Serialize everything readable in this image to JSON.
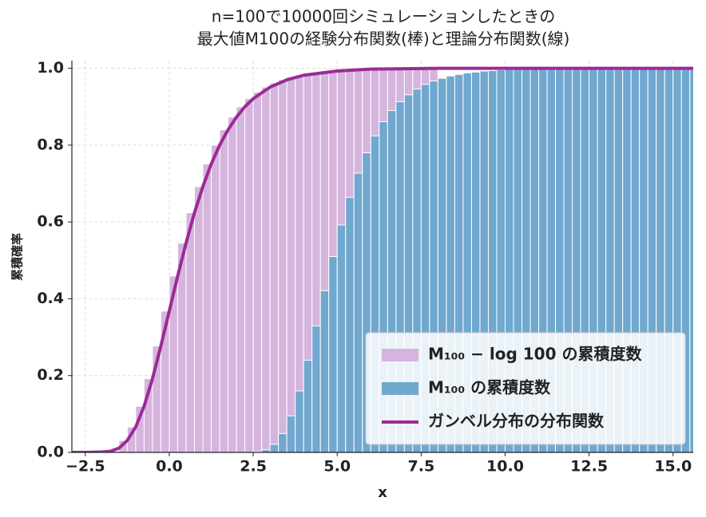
{
  "chart_data": {
    "type": "histogram",
    "title": [
      "n=100で10000回シミュレーションしたときの",
      "最大値M100の経験分布関数(棒)と理論分布関数(線)"
    ],
    "xlabel": "x",
    "ylabel": "累積確率",
    "xlim": [
      -2.9,
      15.6
    ],
    "ylim": [
      0,
      1.02
    ],
    "xticks": [
      {
        "value": -2.5,
        "label": "−2.5"
      },
      {
        "value": 0,
        "label": "0.0"
      },
      {
        "value": 2.5,
        "label": "2.5"
      },
      {
        "value": 5,
        "label": "5.0"
      },
      {
        "value": 7.5,
        "label": "7.5"
      },
      {
        "value": 10,
        "label": "10.0"
      },
      {
        "value": 12.5,
        "label": "12.5"
      },
      {
        "value": 15,
        "label": "15.0"
      }
    ],
    "yticks": [
      {
        "value": 0,
        "label": "0.0"
      },
      0.2,
      0.4,
      0.6,
      0.8,
      {
        "value": 1,
        "label": "1.0"
      }
    ],
    "grid": true,
    "legend": "lower right",
    "series": [
      {
        "name": "M₁₀₀ − log 100 の累積度数",
        "kind": "bars",
        "color": "#d5b5de",
        "bins": [
          -1.5,
          -1.25,
          -1,
          -0.75,
          -0.5,
          -0.25,
          0,
          0.25,
          0.5,
          0.75,
          1,
          1.25,
          1.5,
          1.75,
          2,
          2.25,
          2.5,
          2.75,
          3,
          3.25,
          3.5,
          3.75,
          4,
          4.25,
          4.5,
          4.75,
          5,
          5.25,
          5.5,
          5.75,
          6,
          6.25,
          6.5,
          6.75,
          7,
          7.25,
          7.5,
          7.75,
          8
        ],
        "values": [
          0.031,
          0.066,
          0.12,
          0.192,
          0.277,
          0.368,
          0.459,
          0.545,
          0.624,
          0.692,
          0.751,
          0.8,
          0.84,
          0.873,
          0.9,
          0.921,
          0.938,
          0.951,
          0.962,
          0.97,
          0.977,
          0.982,
          0.986,
          0.989,
          0.991,
          0.993,
          0.995,
          0.996,
          0.997,
          0.998,
          0.998,
          0.999,
          0.999,
          0.999,
          1,
          1,
          1,
          1
        ]
      },
      {
        "name": "M₁₀₀ の累積度数",
        "kind": "bars",
        "color": "#70a8cf",
        "bins": [
          2.5,
          2.75,
          3,
          3.25,
          3.5,
          3.75,
          4,
          4.25,
          4.5,
          4.75,
          5,
          5.25,
          5.5,
          5.75,
          6,
          6.25,
          6.5,
          6.75,
          7,
          7.25,
          7.5,
          7.75,
          8,
          8.25,
          8.5,
          8.75,
          9,
          9.25,
          9.5,
          9.75,
          10,
          10.25,
          10.5,
          10.75,
          11,
          11.25,
          11.5,
          11.75,
          12,
          12.25,
          12.5,
          12.75,
          13,
          13.25,
          13.5,
          13.75,
          14,
          14.25,
          14.5,
          14.75,
          15,
          15.25,
          15.5,
          15.75
        ],
        "values": [
          0.002,
          0.007,
          0.021,
          0.049,
          0.095,
          0.16,
          0.24,
          0.329,
          0.421,
          0.51,
          0.592,
          0.664,
          0.727,
          0.78,
          0.824,
          0.861,
          0.89,
          0.913,
          0.931,
          0.946,
          0.958,
          0.967,
          0.974,
          0.98,
          0.984,
          0.988,
          0.99,
          0.993,
          0.994,
          0.996,
          0.997,
          0.997,
          0.998,
          0.998,
          0.999,
          0.999,
          0.999,
          0.999,
          1,
          1,
          1,
          1,
          1,
          1,
          1,
          1,
          1,
          1,
          1,
          1,
          1,
          1,
          1
        ]
      },
      {
        "name": "ガンベル分布の分布関数",
        "kind": "line",
        "color": "#9c2a96",
        "x": [
          -2.9,
          -2.5,
          -2,
          -1.75,
          -1.5,
          -1.25,
          -1,
          -0.75,
          -0.5,
          -0.25,
          0,
          0.25,
          0.5,
          0.75,
          1,
          1.25,
          1.5,
          1.75,
          2,
          2.25,
          2.5,
          3,
          3.5,
          4,
          5,
          6,
          8,
          10,
          15.6
        ],
        "values": [
          0,
          0,
          0.001,
          0.003,
          0.011,
          0.031,
          0.066,
          0.12,
          0.192,
          0.277,
          0.368,
          0.459,
          0.545,
          0.624,
          0.692,
          0.751,
          0.8,
          0.84,
          0.873,
          0.9,
          0.921,
          0.951,
          0.97,
          0.982,
          0.993,
          0.998,
          1,
          1,
          1
        ]
      }
    ]
  }
}
